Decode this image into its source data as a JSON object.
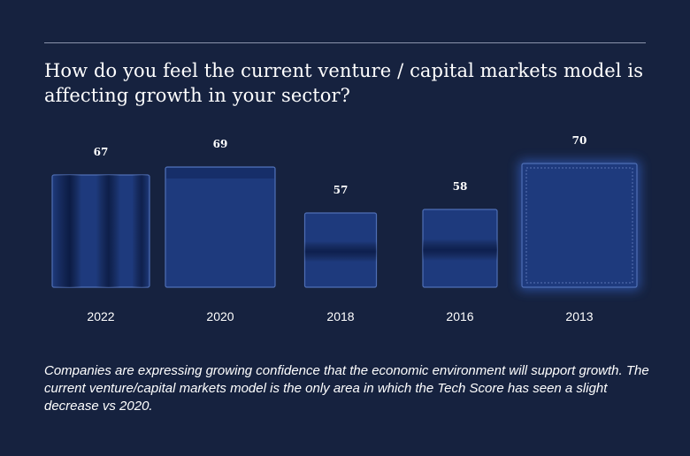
{
  "title": "How do you feel the current venture / capital markets model is affecting growth in your sector?",
  "caption": "Companies are expressing growing confidence that the economic environment will support growth. The current venture/capital markets model is the only area in which the Tech Score has seen a slight decrease vs 2020.",
  "colors": {
    "background": "#16223f",
    "bar_fill": "#1e3a7d",
    "bar_dark": "#0a1a44",
    "bar_edge": "#4f6fb6",
    "glow": "#2f56b0"
  },
  "chart_data": {
    "type": "bar",
    "categories": [
      "2022",
      "2020",
      "2018",
      "2016",
      "2013"
    ],
    "values": [
      67,
      69,
      57,
      58,
      70
    ],
    "value_labels": [
      "67",
      "69",
      "57",
      "58",
      "70"
    ],
    "title": "How do you feel the current venture / capital markets model is affecting growth in your sector?",
    "xlabel": "",
    "ylabel": "",
    "grid": false,
    "legend": "none"
  }
}
